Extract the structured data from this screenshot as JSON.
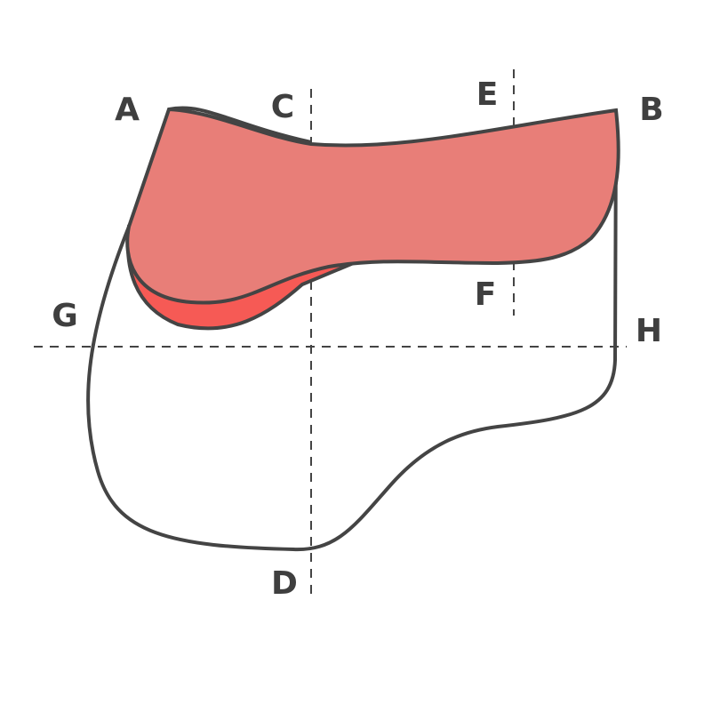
{
  "labels": {
    "a": "A",
    "b": "B",
    "c": "C",
    "d": "D",
    "e": "E",
    "f": "F",
    "g": "G",
    "h": "H"
  }
}
